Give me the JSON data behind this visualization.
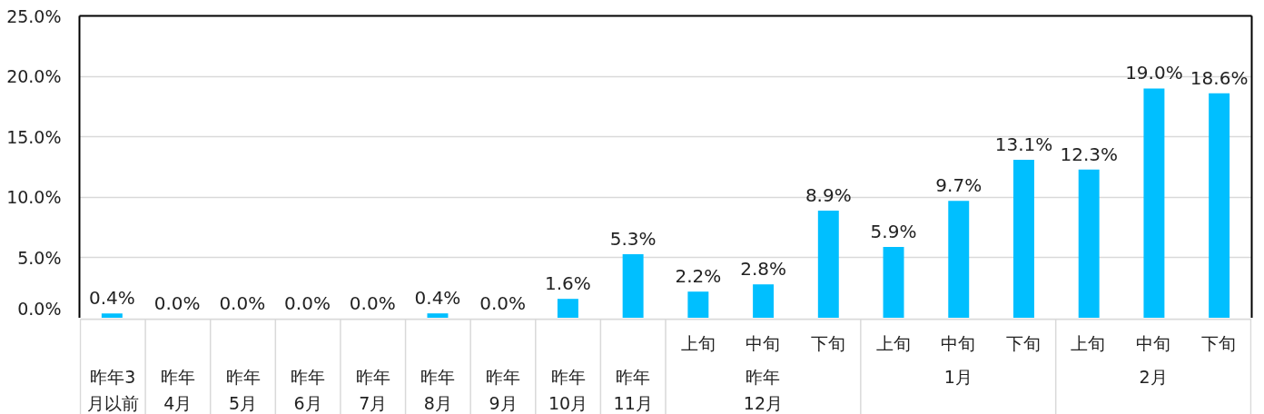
{
  "chart_data": {
    "type": "bar",
    "categories": [
      "昨年3\n月以前",
      "昨年\n4月",
      "昨年\n5月",
      "昨年\n6月",
      "昨年\n7月",
      "昨年\n8月",
      "昨年\n9月",
      "昨年\n10月",
      "昨年\n11月",
      [
        "昨年\n12月",
        "上旬"
      ],
      [
        null,
        "中旬"
      ],
      [
        null,
        "下旬"
      ],
      [
        "1月",
        "上旬"
      ],
      [
        null,
        "中旬"
      ],
      [
        null,
        "下旬"
      ],
      [
        "2月",
        "上旬"
      ],
      [
        null,
        "中旬"
      ],
      [
        null,
        "下旬"
      ]
    ],
    "values": [
      0.4,
      0.0,
      0.0,
      0.0,
      0.0,
      0.4,
      0.0,
      1.6,
      5.3,
      2.2,
      2.8,
      8.9,
      5.9,
      9.7,
      13.1,
      12.3,
      19.0,
      18.6
    ],
    "value_labels": [
      "0.4%",
      "0.0%",
      "0.0%",
      "0.0%",
      "0.0%",
      "0.4%",
      "0.0%",
      "1.6%",
      "5.3%",
      "2.2%",
      "2.8%",
      "8.9%",
      "5.9%",
      "9.7%",
      "13.1%",
      "12.3%",
      "19.0%",
      "18.6%"
    ],
    "color": "#00bfff",
    "ylim": [
      0,
      25
    ],
    "yticks": [
      {
        "value": 0,
        "label": "0.0%"
      },
      {
        "value": 5,
        "label": "5.0%"
      },
      {
        "value": 10,
        "label": "10.0%"
      },
      {
        "value": 15,
        "label": "15.0%"
      },
      {
        "value": 20,
        "label": "20.0%"
      },
      {
        "value": 25,
        "label": "25.0%"
      }
    ],
    "grid": "y"
  }
}
